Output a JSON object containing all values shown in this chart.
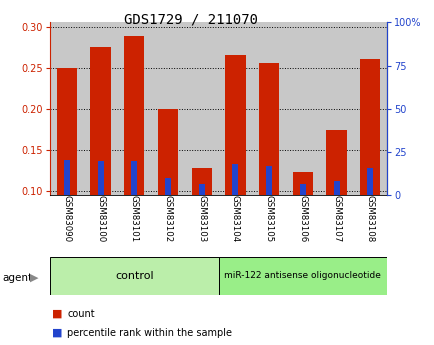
{
  "title": "GDS1729 / 211070",
  "samples": [
    "GSM83090",
    "GSM83100",
    "GSM83101",
    "GSM83102",
    "GSM83103",
    "GSM83104",
    "GSM83105",
    "GSM83106",
    "GSM83107",
    "GSM83108"
  ],
  "red_values": [
    0.25,
    0.275,
    0.288,
    0.2,
    0.128,
    0.265,
    0.255,
    0.123,
    0.174,
    0.26
  ],
  "blue_values": [
    0.138,
    0.136,
    0.136,
    0.115,
    0.108,
    0.133,
    0.13,
    0.108,
    0.112,
    0.128
  ],
  "ylim": [
    0.095,
    0.305
  ],
  "yticks_left": [
    0.1,
    0.15,
    0.2,
    0.25,
    0.3
  ],
  "ytick_labels_left": [
    "0.10",
    "0.15",
    "0.20",
    "0.25",
    "0.30"
  ],
  "yticks_right_pct": [
    0,
    25,
    50,
    75,
    100
  ],
  "ytick_labels_right": [
    "0",
    "25",
    "50",
    "75",
    "100%"
  ],
  "n_control": 5,
  "n_treatment": 5,
  "control_label": "control",
  "treatment_label": "miR-122 antisense oligonucleotide",
  "agent_label": "agent",
  "legend_red": "count",
  "legend_blue": "percentile rank within the sample",
  "bar_width": 0.6,
  "red_color": "#CC2200",
  "blue_color": "#2244CC",
  "bar_bg_color": "#C8C8C8",
  "control_bg": "#BBEEAA",
  "treatment_bg": "#99EE88",
  "title_fontsize": 10,
  "tick_fontsize": 7,
  "baseline": 0.095
}
